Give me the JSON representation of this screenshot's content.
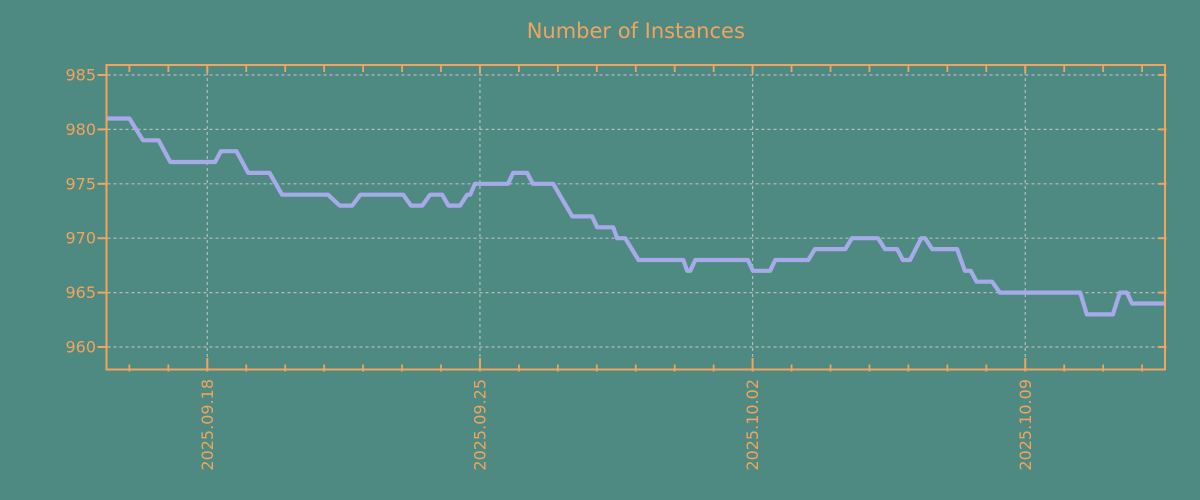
{
  "title": "Number of Instances",
  "colors": {
    "background": "#4e8a82",
    "axis": "#f0a45f",
    "line": "#a7aae9",
    "grid": "#b2beba"
  },
  "chart_data": {
    "type": "line",
    "title": "Number of Instances",
    "xlabel": "",
    "ylabel": "",
    "grid": true,
    "x_unit": "days relative to 2025.09.18 (weekly major ticks, daily minor ticks)",
    "xlim": [
      -2.61,
      24.59
    ],
    "ylim": [
      957.9,
      986.0
    ],
    "y_ticks": [
      960,
      965,
      970,
      975,
      980,
      985
    ],
    "x_major_ticks": [
      {
        "d": 0,
        "label": "2025.09.18"
      },
      {
        "d": 7,
        "label": "2025.09.25"
      },
      {
        "d": 14,
        "label": "2025.10.02"
      },
      {
        "d": 21,
        "label": "2025.10.09"
      }
    ],
    "x_minor_tick_interval_days": 1,
    "series": [
      {
        "name": "instances",
        "points": [
          [
            -2.61,
            981
          ],
          [
            -2.0,
            981
          ],
          [
            -1.65,
            979
          ],
          [
            -1.25,
            979
          ],
          [
            -0.95,
            977
          ],
          [
            0.2,
            977
          ],
          [
            0.35,
            978
          ],
          [
            0.75,
            978
          ],
          [
            1.05,
            976
          ],
          [
            1.6,
            976
          ],
          [
            1.92,
            974
          ],
          [
            3.1,
            974
          ],
          [
            3.4,
            973
          ],
          [
            3.72,
            973
          ],
          [
            3.93,
            974
          ],
          [
            5.03,
            974
          ],
          [
            5.23,
            973
          ],
          [
            5.52,
            973
          ],
          [
            5.72,
            974
          ],
          [
            6.03,
            974
          ],
          [
            6.19,
            973
          ],
          [
            6.49,
            973
          ],
          [
            6.67,
            974
          ],
          [
            6.75,
            974
          ],
          [
            6.87,
            975
          ],
          [
            7.72,
            975
          ],
          [
            7.85,
            976
          ],
          [
            8.21,
            976
          ],
          [
            8.36,
            975
          ],
          [
            8.88,
            975
          ],
          [
            9.37,
            972
          ],
          [
            9.88,
            972
          ],
          [
            10.01,
            971
          ],
          [
            10.42,
            971
          ],
          [
            10.52,
            970
          ],
          [
            10.73,
            970
          ],
          [
            11.07,
            968
          ],
          [
            12.22,
            968
          ],
          [
            12.32,
            967
          ],
          [
            12.4,
            967
          ],
          [
            12.53,
            968
          ],
          [
            13.88,
            968
          ],
          [
            14.01,
            967
          ],
          [
            14.45,
            967
          ],
          [
            14.58,
            968
          ],
          [
            15.43,
            968
          ],
          [
            15.6,
            969
          ],
          [
            16.38,
            969
          ],
          [
            16.55,
            970
          ],
          [
            17.22,
            970
          ],
          [
            17.4,
            969
          ],
          [
            17.71,
            969
          ],
          [
            17.86,
            968
          ],
          [
            18.04,
            968
          ],
          [
            18.33,
            970
          ],
          [
            18.43,
            970
          ],
          [
            18.61,
            969
          ],
          [
            19.25,
            969
          ],
          [
            19.45,
            967
          ],
          [
            19.6,
            967
          ],
          [
            19.75,
            966
          ],
          [
            20.15,
            966
          ],
          [
            20.35,
            965
          ],
          [
            22.41,
            965
          ],
          [
            22.58,
            963
          ],
          [
            23.25,
            963
          ],
          [
            23.43,
            965
          ],
          [
            23.61,
            965
          ],
          [
            23.74,
            964
          ],
          [
            24.59,
            964
          ]
        ]
      }
    ]
  }
}
